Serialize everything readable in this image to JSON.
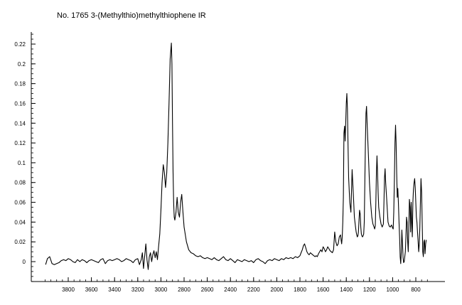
{
  "chart_data": {
    "type": "line",
    "title": "No. 1765 3-(Methylthio)methylthiophene IR",
    "xlabel": "",
    "ylabel": "",
    "xlim": [
      4000,
      700
    ],
    "ylim": [
      -0.02,
      0.23
    ],
    "x_reversed": true,
    "grid": false,
    "line_color": "#000000",
    "x_ticks": [
      3800,
      3600,
      3400,
      3200,
      3000,
      2800,
      2600,
      2400,
      2200,
      2000,
      1800,
      1600,
      1400,
      1200,
      1000,
      800
    ],
    "y_ticks": [
      0,
      0.02,
      0.04,
      0.06,
      0.08,
      0.1,
      0.12,
      0.14,
      0.16,
      0.18,
      0.2,
      0.22
    ],
    "series": [
      {
        "x": [
          3995,
          3980,
          3960,
          3940,
          3920,
          3900,
          3880,
          3860,
          3840,
          3820,
          3800,
          3780,
          3760,
          3740,
          3720,
          3700,
          3680,
          3660,
          3640,
          3620,
          3600,
          3580,
          3560,
          3540,
          3520,
          3500,
          3480,
          3460,
          3440,
          3420,
          3400,
          3380,
          3360,
          3340,
          3320,
          3300,
          3280,
          3260,
          3240,
          3220,
          3200,
          3185,
          3170,
          3160,
          3150,
          3140,
          3130,
          3120,
          3110,
          3100,
          3090,
          3080,
          3070,
          3060,
          3050,
          3040,
          3030,
          3020,
          3010,
          3000,
          2990,
          2980,
          2970,
          2960,
          2950,
          2940,
          2930,
          2920,
          2910,
          2905,
          2900,
          2895,
          2890,
          2885,
          2880,
          2870,
          2860,
          2850,
          2840,
          2830,
          2820,
          2810,
          2800,
          2780,
          2760,
          2740,
          2720,
          2700,
          2680,
          2660,
          2640,
          2620,
          2600,
          2580,
          2560,
          2540,
          2520,
          2500,
          2480,
          2460,
          2440,
          2420,
          2400,
          2380,
          2360,
          2340,
          2320,
          2300,
          2280,
          2260,
          2240,
          2220,
          2200,
          2180,
          2160,
          2140,
          2120,
          2100,
          2080,
          2060,
          2040,
          2020,
          2000,
          1980,
          1960,
          1940,
          1920,
          1900,
          1880,
          1860,
          1840,
          1820,
          1800,
          1790,
          1780,
          1770,
          1760,
          1750,
          1740,
          1730,
          1720,
          1710,
          1700,
          1690,
          1680,
          1670,
          1660,
          1650,
          1640,
          1630,
          1620,
          1610,
          1600,
          1590,
          1580,
          1570,
          1560,
          1550,
          1540,
          1530,
          1520,
          1510,
          1500,
          1490,
          1480,
          1470,
          1460,
          1450,
          1445,
          1440,
          1435,
          1430,
          1425,
          1420,
          1415,
          1410,
          1405,
          1400,
          1395,
          1390,
          1385,
          1380,
          1370,
          1360,
          1350,
          1340,
          1330,
          1320,
          1315,
          1310,
          1305,
          1300,
          1295,
          1290,
          1285,
          1280,
          1275,
          1270,
          1265,
          1260,
          1255,
          1250,
          1245,
          1240,
          1235,
          1230,
          1225,
          1220,
          1210,
          1200,
          1190,
          1180,
          1170,
          1160,
          1155,
          1150,
          1145,
          1140,
          1135,
          1130,
          1125,
          1120,
          1110,
          1100,
          1090,
          1080,
          1075,
          1070,
          1065,
          1060,
          1050,
          1040,
          1030,
          1020,
          1010,
          1000,
          995,
          990,
          985,
          980,
          975,
          970,
          965,
          960,
          955,
          950,
          945,
          940,
          935,
          930,
          925,
          920,
          915,
          910,
          905,
          900,
          895,
          890,
          885,
          880,
          875,
          870,
          865,
          860,
          855,
          850,
          845,
          840,
          835,
          830,
          825,
          820,
          815,
          810,
          805,
          800,
          795,
          790,
          785,
          780,
          775,
          770,
          765,
          760,
          755,
          750,
          745,
          740,
          735,
          730,
          725,
          720,
          715,
          710
        ],
        "y": [
          -0.003,
          0.003,
          0.005,
          -0.002,
          -0.003,
          -0.002,
          -0.001,
          0.001,
          0.002,
          0.001,
          0.003,
          0.002,
          0.0,
          -0.001,
          0.002,
          0.0,
          0.002,
          0.001,
          -0.001,
          0.001,
          0.002,
          0.001,
          0.0,
          -0.001,
          0.002,
          0.003,
          -0.002,
          0.001,
          0.002,
          0.001,
          0.002,
          0.003,
          0.002,
          0.0,
          0.001,
          0.003,
          0.002,
          0.001,
          -0.001,
          0.002,
          0.003,
          -0.003,
          0.002,
          0.009,
          -0.007,
          0.006,
          0.018,
          0.002,
          -0.008,
          0.005,
          0.009,
          0.0,
          0.007,
          0.011,
          0.004,
          0.01,
          0.002,
          0.015,
          0.028,
          0.052,
          0.08,
          0.098,
          0.09,
          0.075,
          0.09,
          0.12,
          0.16,
          0.205,
          0.221,
          0.2,
          0.14,
          0.09,
          0.06,
          0.045,
          0.042,
          0.05,
          0.065,
          0.05,
          0.045,
          0.06,
          0.068,
          0.05,
          0.035,
          0.02,
          0.012,
          0.009,
          0.008,
          0.006,
          0.005,
          0.006,
          0.004,
          0.003,
          0.004,
          0.003,
          0.002,
          0.004,
          0.002,
          0.001,
          0.003,
          0.005,
          0.002,
          0.001,
          0.003,
          0.001,
          -0.001,
          0.002,
          0.001,
          0.0,
          0.002,
          0.001,
          0.0,
          0.001,
          -0.001,
          0.002,
          0.003,
          0.001,
          0.0,
          -0.002,
          0.001,
          0.002,
          0.001,
          0.003,
          0.002,
          0.001,
          0.003,
          0.002,
          0.004,
          0.003,
          0.004,
          0.003,
          0.005,
          0.004,
          0.006,
          0.009,
          0.012,
          0.016,
          0.018,
          0.014,
          0.01,
          0.008,
          0.007,
          0.009,
          0.008,
          0.007,
          0.006,
          0.005,
          0.006,
          0.005,
          0.008,
          0.01,
          0.012,
          0.01,
          0.015,
          0.013,
          0.01,
          0.012,
          0.015,
          0.013,
          0.011,
          0.01,
          0.009,
          0.012,
          0.03,
          0.02,
          0.016,
          0.018,
          0.025,
          0.027,
          0.022,
          0.018,
          0.025,
          0.04,
          0.065,
          0.13,
          0.137,
          0.122,
          0.14,
          0.16,
          0.17,
          0.155,
          0.12,
          0.085,
          0.06,
          0.05,
          0.093,
          0.07,
          0.045,
          0.035,
          0.03,
          0.027,
          0.025,
          0.026,
          0.03,
          0.042,
          0.052,
          0.048,
          0.035,
          0.028,
          0.026,
          0.025,
          0.026,
          0.028,
          0.04,
          0.08,
          0.12,
          0.15,
          0.157,
          0.14,
          0.11,
          0.08,
          0.06,
          0.045,
          0.038,
          0.035,
          0.033,
          0.036,
          0.06,
          0.09,
          0.107,
          0.09,
          0.07,
          0.055,
          0.045,
          0.038,
          0.035,
          0.038,
          0.06,
          0.085,
          0.094,
          0.08,
          0.06,
          0.04,
          0.036,
          0.035,
          0.037,
          0.034,
          0.033,
          0.05,
          0.08,
          0.12,
          0.138,
          0.12,
          0.09,
          0.065,
          0.074,
          0.06,
          0.04,
          0.025,
          0.005,
          -0.002,
          0.01,
          0.032,
          0.018,
          0.004,
          -0.001,
          0.0,
          0.005,
          0.01,
          0.025,
          0.045,
          0.04,
          0.02,
          0.01,
          0.035,
          0.063,
          0.055,
          0.03,
          0.06,
          0.04,
          0.025,
          0.06,
          0.073,
          0.08,
          0.084,
          0.075,
          0.06,
          0.045,
          0.04,
          0.03,
          0.02,
          0.01,
          0.018,
          0.035,
          0.06,
          0.084,
          0.07,
          0.04,
          0.01,
          0.005,
          0.02,
          0.022,
          0.008,
          0.018,
          0.022
        ]
      }
    ]
  }
}
